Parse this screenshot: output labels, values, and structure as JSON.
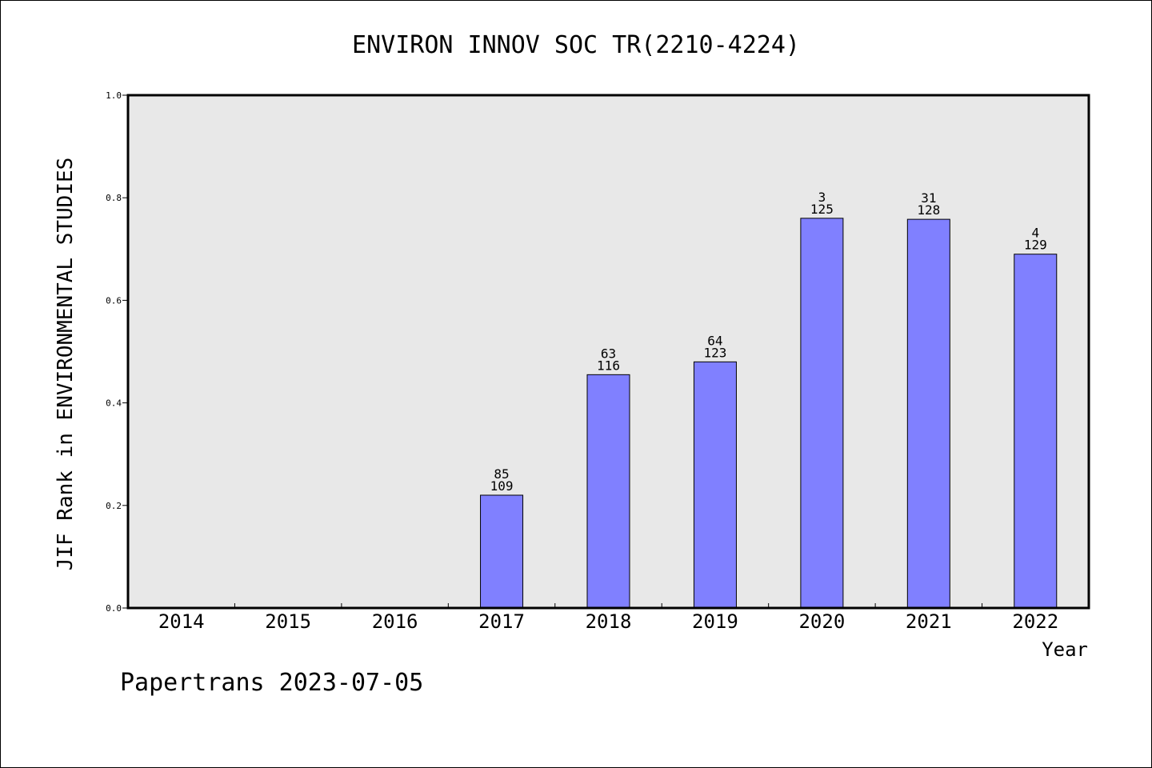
{
  "chart_data": {
    "type": "bar",
    "title": "ENVIRON INNOV SOC TR(2210-4224)",
    "xlabel": "Year",
    "ylabel": "JIF Rank in ENVIRONMENTAL STUDIES",
    "ylim": [
      0,
      1.0
    ],
    "yticks": [
      "0.0",
      "0.2",
      "0.4",
      "0.6",
      "0.8",
      "1.0"
    ],
    "categories": [
      "2014",
      "2015",
      "2016",
      "2017",
      "2018",
      "2019",
      "2020",
      "2021",
      "2022"
    ],
    "values": [
      null,
      null,
      null,
      0.22,
      0.455,
      0.48,
      0.76,
      0.758,
      0.69
    ],
    "rank": [
      null,
      null,
      null,
      "85",
      "63",
      "64",
      "3",
      "31",
      "4"
    ],
    "total": [
      null,
      null,
      null,
      "109",
      "116",
      "123",
      "125",
      "128",
      "129"
    ],
    "bar_color": "#8080ff",
    "plot_background": "#e8e8e8",
    "grid": false
  },
  "footer": "Papertrans 2023-07-05"
}
